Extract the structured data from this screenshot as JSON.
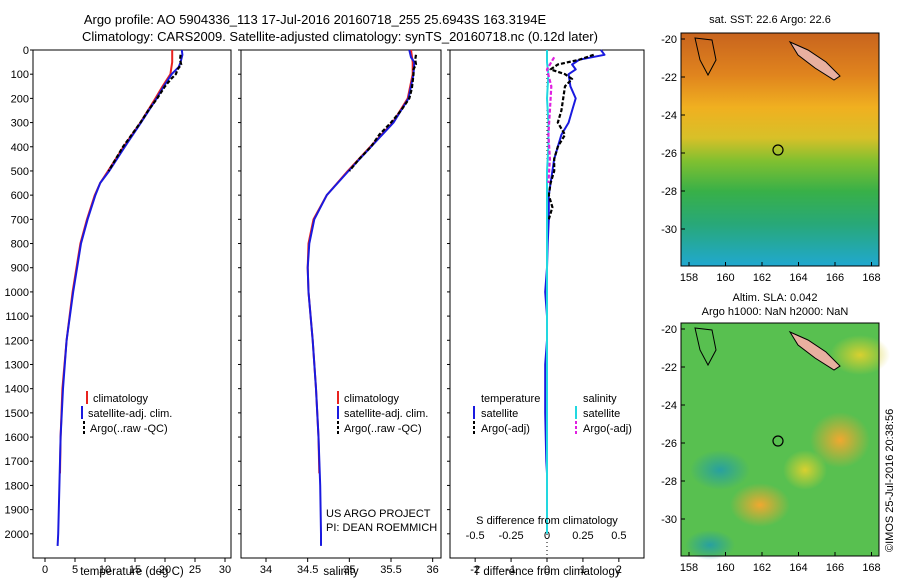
{
  "header": {
    "line1": "Argo profile: AO 5904336_113 17-Jul-2016 20160718_255 25.6943S 163.3194E",
    "line2": "Climatology: CARS2009. Satellite-adjusted climatology: synTS_20160718.nc (0.12d later)"
  },
  "colors": {
    "climatology": "#e8231f",
    "satellite": "#1a1adf",
    "argo": "#000000",
    "salinity_sat": "#22d8e0",
    "salinity_argo": "#e020e0"
  },
  "chart_data": [
    {
      "type": "line",
      "id": "temperature",
      "xlabel": "temperature (deg C)",
      "ylabel": "",
      "xlim": [
        -2,
        31
      ],
      "ylim": [
        2100,
        0
      ],
      "xticks": [
        "0",
        "5",
        "10",
        "15",
        "20",
        "25",
        "30"
      ],
      "yticks": [
        "0",
        "100",
        "200",
        "300",
        "400",
        "500",
        "600",
        "700",
        "800",
        "900",
        "1000",
        "1100",
        "1200",
        "1300",
        "1400",
        "1500",
        "1600",
        "1700",
        "1800",
        "1900",
        "2000"
      ],
      "legend": [
        "climatology",
        "satellite-adj. clim.",
        "Argo(..raw -QC)"
      ],
      "series": [
        {
          "name": "climatology",
          "depth": [
            0,
            50,
            100,
            150,
            200,
            300,
            400,
            500,
            550,
            600,
            700,
            800,
            1000,
            1200,
            1400,
            1600,
            1750
          ],
          "values": [
            21.2,
            21.2,
            20.9,
            19.6,
            18.4,
            15.9,
            13.1,
            10.5,
            9.2,
            8.3,
            7.0,
            5.9,
            4.6,
            3.6,
            2.9,
            2.6,
            2.5
          ]
        },
        {
          "name": "satellite-adj. clim.",
          "depth": [
            0,
            20,
            50,
            70,
            100,
            150,
            200,
            300,
            400,
            500,
            550,
            600,
            700,
            800,
            1000,
            1200,
            1400,
            1600,
            1800,
            2000,
            2050
          ],
          "values": [
            22.8,
            22.9,
            22.6,
            22.3,
            21.1,
            19.8,
            18.6,
            16.0,
            13.3,
            10.7,
            9.2,
            8.4,
            7.1,
            6.0,
            4.7,
            3.6,
            3.0,
            2.6,
            2.4,
            2.2,
            2.1
          ]
        },
        {
          "name": "Argo(..raw -QC)",
          "depth": [
            20,
            40,
            60,
            80,
            100,
            120,
            150,
            200,
            250,
            300,
            400,
            500
          ],
          "values": [
            22.6,
            22.5,
            22.7,
            22.1,
            21.8,
            21.0,
            20.0,
            18.7,
            17.2,
            15.9,
            13.0,
            10.6
          ]
        }
      ]
    },
    {
      "type": "line",
      "id": "salinity",
      "xlabel": "salinity",
      "ylabel": "",
      "xlim": [
        33.7,
        36.1
      ],
      "ylim": [
        2100,
        0
      ],
      "xticks": [
        "34",
        "34.5",
        "35",
        "35.5",
        "36"
      ],
      "legend": [
        "climatology",
        "satellite-adj. clim.",
        "Argo(..raw -QC)"
      ],
      "series": [
        {
          "name": "climatology",
          "depth": [
            0,
            50,
            100,
            200,
            300,
            400,
            500,
            600,
            700,
            800,
            900,
            1000,
            1200,
            1400,
            1600,
            1750
          ],
          "values": [
            35.74,
            35.76,
            35.76,
            35.7,
            35.52,
            35.25,
            34.98,
            34.73,
            34.57,
            34.51,
            34.5,
            34.51,
            34.56,
            34.6,
            34.63,
            34.64
          ]
        },
        {
          "name": "satellite-adj. clim.",
          "depth": [
            0,
            30,
            50,
            100,
            200,
            300,
            400,
            500,
            600,
            700,
            800,
            900,
            1000,
            1200,
            1400,
            1600,
            1800,
            2000,
            2050
          ],
          "values": [
            35.72,
            35.74,
            35.78,
            35.77,
            35.71,
            35.53,
            35.26,
            34.99,
            34.73,
            34.58,
            34.52,
            34.5,
            34.51,
            34.56,
            34.6,
            34.63,
            34.65,
            34.66,
            34.66
          ]
        },
        {
          "name": "Argo(..raw -QC)",
          "depth": [
            20,
            40,
            60,
            80,
            100,
            130,
            160,
            200,
            250,
            300,
            350,
            400,
            450,
            500
          ],
          "values": [
            35.8,
            35.79,
            35.8,
            35.77,
            35.77,
            35.76,
            35.75,
            35.72,
            35.62,
            35.5,
            35.36,
            35.26,
            35.12,
            35.0
          ]
        }
      ]
    },
    {
      "type": "line",
      "id": "differences",
      "xlabel": "T difference from climatology",
      "xlabel_top": "S difference from climatology",
      "xlim": [
        -2.7,
        2.7
      ],
      "ylim": [
        2100,
        0
      ],
      "xticks": [
        "-2",
        "-1",
        "0",
        "1",
        "2"
      ],
      "xticks_top": [
        "-0.5",
        "-0.25",
        "0",
        "0.25",
        "0.5"
      ],
      "legend_title_t": "temperature",
      "legend_title_s": "salinity",
      "legend_t": [
        "satellite",
        "Argo(-adj)"
      ],
      "legend_s": [
        "satellite",
        "Argo(-adj)"
      ],
      "series": [
        {
          "name": "T satellite",
          "depth": [
            0,
            20,
            40,
            60,
            80,
            100,
            150,
            200,
            250,
            300,
            350,
            400,
            450,
            500,
            550,
            600,
            700,
            800,
            900,
            1000,
            1100,
            1200,
            1300,
            1500,
            1700,
            1750
          ],
          "values": [
            1.5,
            1.6,
            0.9,
            0.7,
            0.8,
            0.6,
            0.65,
            0.8,
            0.7,
            0.6,
            0.4,
            0.3,
            0.2,
            0.15,
            0.1,
            0.05,
            0.05,
            0.02,
            0.0,
            -0.05,
            0.0,
            0.0,
            -0.05,
            -0.05,
            -0.02,
            0.0
          ]
        },
        {
          "name": "T Argo(-adj)",
          "depth": [
            20,
            40,
            60,
            80,
            100,
            120,
            150,
            200,
            250,
            300,
            350,
            400,
            450,
            500,
            550,
            600,
            650,
            700
          ],
          "values": [
            1.3,
            0.9,
            0.3,
            0.1,
            0.5,
            0.7,
            0.5,
            0.45,
            0.4,
            0.3,
            0.5,
            0.3,
            0.2,
            0.2,
            0.1,
            0.05,
            0.15,
            0.05
          ]
        },
        {
          "name": "S satellite",
          "depth": [
            0,
            50,
            100,
            200,
            300,
            400,
            500,
            600,
            800,
            1000,
            1200,
            1400,
            1600,
            1800,
            2000
          ],
          "values": [
            0.0,
            0.0,
            0.01,
            0.0,
            0.01,
            0.01,
            0.0,
            0.0,
            0.0,
            0.0,
            0.0,
            0.0,
            0.0,
            0.0,
            0.0
          ]
        },
        {
          "name": "S Argo(-adj)",
          "depth": [
            30,
            80,
            150,
            250,
            350,
            450,
            550
          ],
          "values": [
            0.05,
            0.0,
            0.03,
            0.02,
            0.01,
            0.02,
            0.01
          ]
        }
      ]
    }
  ],
  "annotations": {
    "project": "US ARGO PROJECT",
    "pi": "PI: DEAN ROEMMICH"
  },
  "maps": {
    "sst_title": "sat. SST: 22.6  Argo: 22.6",
    "sla_title1": "Altim. SLA: 0.042",
    "sla_title2": "Argo h1000: NaN h2000: NaN",
    "lon_ticks": [
      "158",
      "160",
      "162",
      "164",
      "166",
      "168"
    ],
    "lat_ticks": [
      "-20",
      "-22",
      "-24",
      "-26",
      "-28",
      "-30"
    ]
  },
  "credit": "©IMOS 25-Jul-2016 20:38:56"
}
